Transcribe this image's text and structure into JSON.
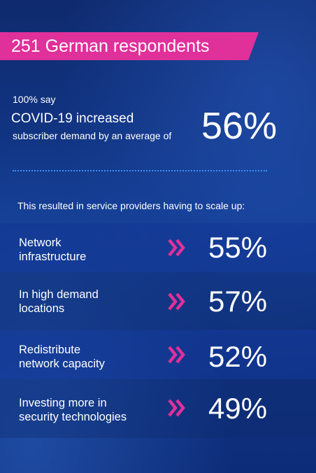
{
  "banner": {
    "title": "251 German respondents"
  },
  "headline": {
    "line1": "100% say",
    "line2": "COVID-19 increased",
    "line3": "subscriber demand by an average of",
    "value": "56%"
  },
  "intro": "This resulted in service providers having to scale up:",
  "rows": [
    {
      "label_line1": "Network",
      "label_line2": "infrastructure",
      "value": "55%"
    },
    {
      "label_line1": "In high demand",
      "label_line2": "locations",
      "value": "57%"
    },
    {
      "label_line1": "Redistribute",
      "label_line2": "network capacity",
      "value": "52%"
    },
    {
      "label_line1": "Investing more in",
      "label_line2": "security technologies",
      "value": "49%"
    }
  ],
  "colors": {
    "accent": "#e0309a",
    "background": "#123a8e",
    "divider": "#3d8ff0"
  },
  "icons": {
    "row_marker": "double-chevron-right-icon"
  }
}
